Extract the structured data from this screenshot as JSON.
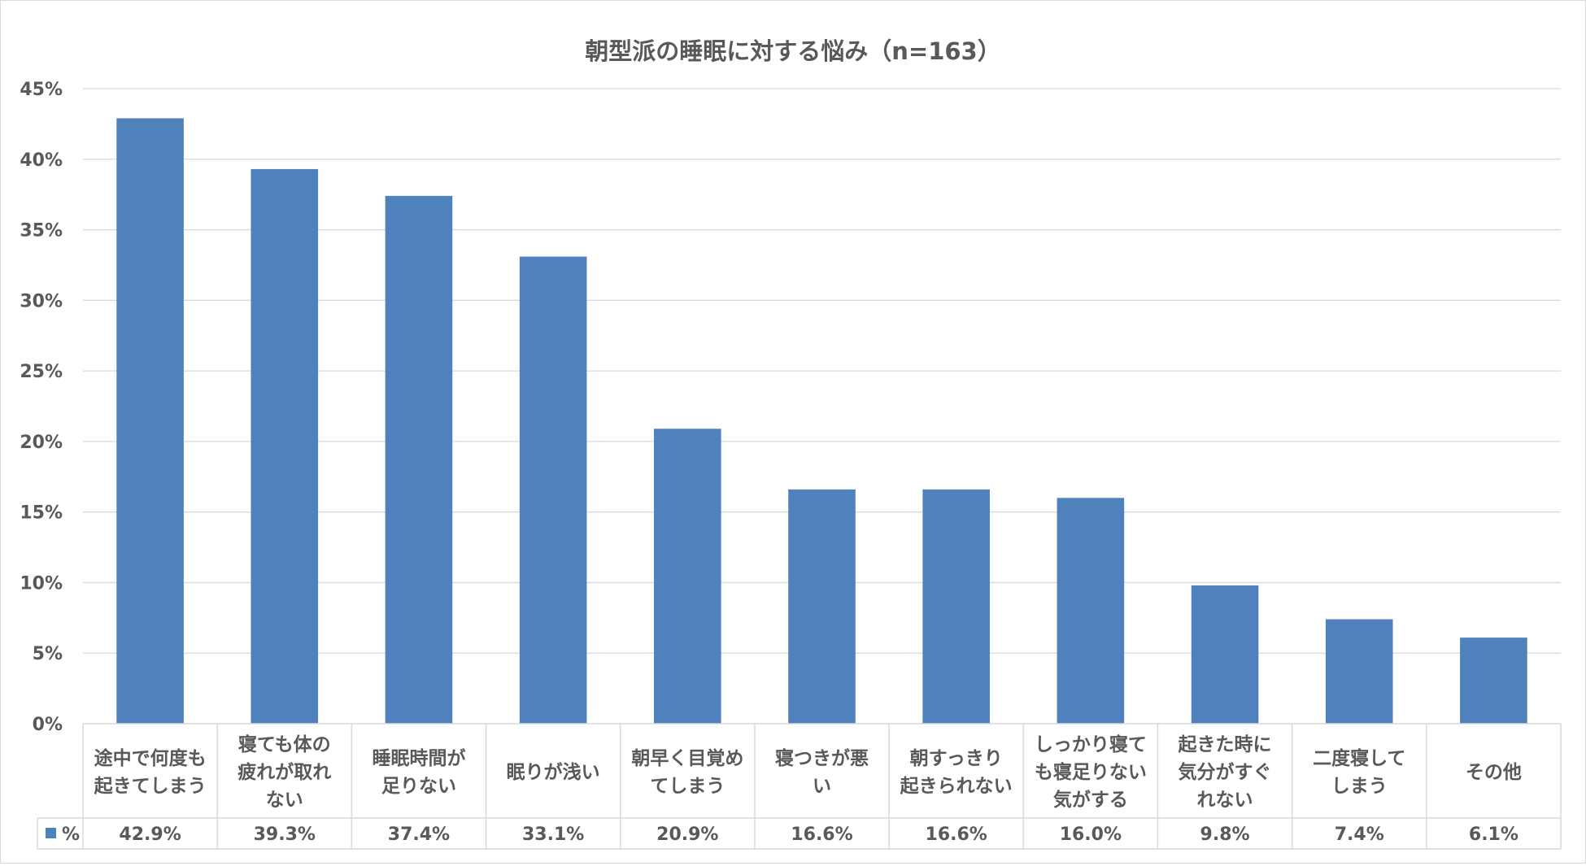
{
  "chart_data": {
    "type": "bar",
    "title": "朝型派の睡眠に対する悩み（n=163）",
    "categories": [
      [
        "途中で何度も",
        "起きてしまう"
      ],
      [
        "寝ても体の",
        "疲れが取れ",
        "ない"
      ],
      [
        "睡眠時間が",
        "足りない"
      ],
      [
        "眠りが浅い"
      ],
      [
        "朝早く目覚め",
        "てしまう"
      ],
      [
        "寝つきが悪",
        "い"
      ],
      [
        "朝すっきり",
        "起きられない"
      ],
      [
        "しっかり寝て",
        "も寝足りない",
        "気がする"
      ],
      [
        "起きた時に",
        "気分がすぐ",
        "れない"
      ],
      [
        "二度寝して",
        "しまう"
      ],
      [
        "その他"
      ]
    ],
    "series": [
      {
        "name": "%",
        "color": "#4f81bd",
        "values": [
          42.9,
          39.3,
          37.4,
          33.1,
          20.9,
          16.6,
          16.6,
          16.0,
          9.8,
          7.4,
          6.1
        ],
        "labels": [
          "42.9%",
          "39.3%",
          "37.4%",
          "33.1%",
          "20.9%",
          "16.6%",
          "16.6%",
          "16.0%",
          "9.8%",
          "7.4%",
          "6.1%"
        ]
      }
    ],
    "y_ticks": [
      "0%",
      "5%",
      "10%",
      "15%",
      "20%",
      "25%",
      "30%",
      "35%",
      "40%",
      "45%"
    ],
    "ylim": [
      0,
      45
    ],
    "grid": true,
    "legend_key_in_table": true
  }
}
